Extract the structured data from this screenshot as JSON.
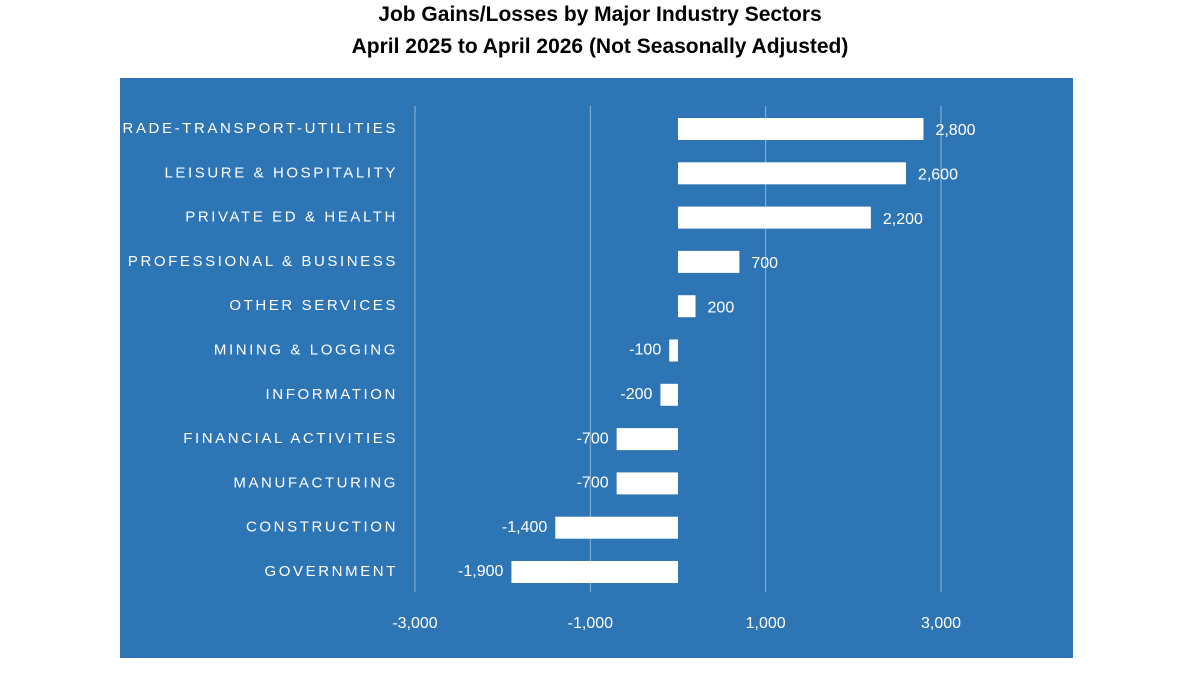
{
  "chart_data": {
    "type": "bar",
    "orientation": "horizontal",
    "title": "Job Gains/Losses by Major Industry Sectors",
    "subtitle": "April 2025 to April 2026 (Not Seasonally Adjusted)",
    "categories": [
      "TRADE-TRANSPORT-UTILITIES",
      "LEISURE & HOSPITALITY",
      "PRIVATE ED & HEALTH",
      "PROFESSIONAL & BUSINESS",
      "OTHER SERVICES",
      "MINING & LOGGING",
      "INFORMATION",
      "FINANCIAL ACTIVITIES",
      "MANUFACTURING",
      "CONSTRUCTION",
      "GOVERNMENT"
    ],
    "values": [
      2800,
      2600,
      2200,
      700,
      200,
      -100,
      -200,
      -700,
      -700,
      -1400,
      -1900
    ],
    "value_labels": [
      "2,800",
      "2,600",
      "2,200",
      "700",
      "200",
      "-100",
      "-200",
      "-700",
      "-700",
      "-1,400",
      "-1,900"
    ],
    "xlim": [
      -3000,
      3000
    ],
    "xticks": [
      -3000,
      -1000,
      1000,
      3000
    ],
    "xtick_labels": [
      "-3,000",
      "-1,000",
      "1,000",
      "3,000"
    ],
    "gridlines": [
      -3000,
      -1000,
      1000,
      3000
    ],
    "grid": true,
    "legend": "none",
    "colors": {
      "plot_background": "#2E75B6",
      "bar": "#FFFFFF",
      "grid": "#8FB6DD",
      "text": "#FFFFFF",
      "title": "#000000"
    }
  }
}
